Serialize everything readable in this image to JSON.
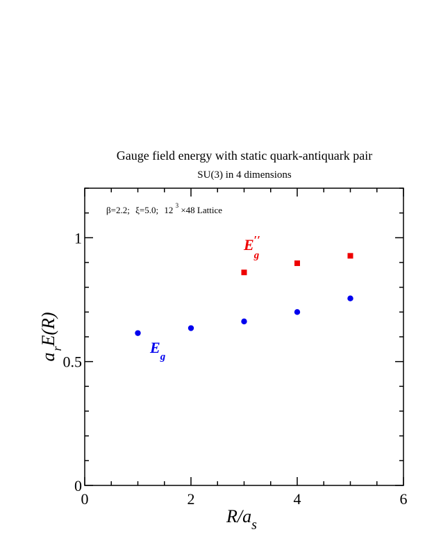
{
  "colors": {
    "series_eg": "#0000ee",
    "series_eg2": "#ee0000",
    "axis": "#000000",
    "background": "#ffffff"
  },
  "chart_data": {
    "type": "scatter",
    "title": "Gauge field energy with static quark-antiquark pair",
    "subtitle": "SU(3) in 4 dimensions",
    "annotation": {
      "beta": "β=2.2;",
      "xi": "ξ=5.0;",
      "lattice_l": "12",
      "lattice_exp": "3",
      "lattice_rest": "×48 Lattice"
    },
    "xlabel": {
      "main": "R/a",
      "sub": "s"
    },
    "ylabel": {
      "a": "a",
      "sub": "r",
      "rest": "E(R)"
    },
    "xlim": [
      0,
      6
    ],
    "ylim": [
      0,
      1.2
    ],
    "x_ticks": [
      0,
      2,
      4,
      6
    ],
    "x_tick_labels": [
      "0",
      "2",
      "4",
      "6"
    ],
    "y_ticks": [
      0,
      0.5,
      1
    ],
    "y_tick_labels": [
      "0",
      "0.5",
      "1"
    ],
    "x_minor_step": 0.5,
    "y_minor_step": 0.1,
    "grid": false,
    "series": [
      {
        "label_main": "E",
        "label_sub": "g",
        "label_prime": "",
        "color": "#0000ee",
        "marker": "circle",
        "x": [
          1,
          2,
          3,
          4,
          5
        ],
        "y": [
          0.615,
          0.635,
          0.662,
          0.7,
          0.755
        ]
      },
      {
        "label_main": "E",
        "label_sub": "g",
        "label_prime": "′′",
        "color": "#ee0000",
        "marker": "square",
        "x": [
          3,
          4,
          5
        ],
        "y": [
          0.86,
          0.897,
          0.927
        ]
      }
    ]
  }
}
